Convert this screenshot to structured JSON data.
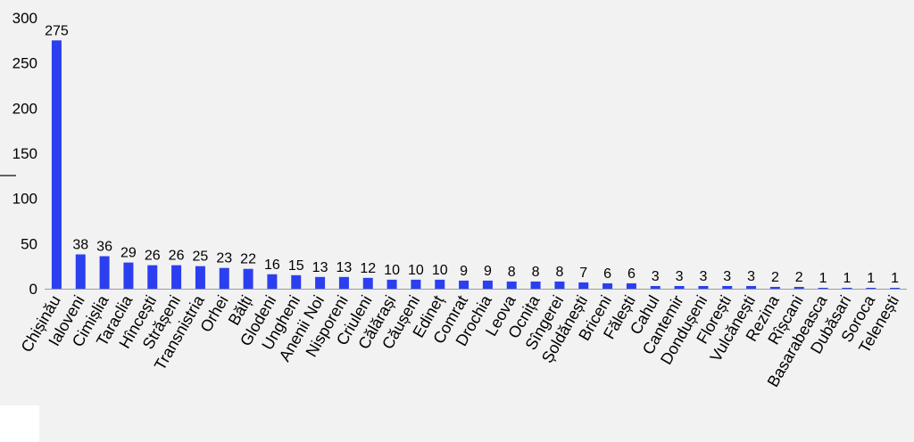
{
  "chart_data": {
    "type": "bar",
    "categories": [
      "Chișinău",
      "Ialoveni",
      "Cimișlia",
      "Taraclia",
      "Hîncești",
      "Strășeni",
      "Transnistria",
      "Orhei",
      "Bălți",
      "Glodeni",
      "Ungheni",
      "Anenii Noi",
      "Nisporeni",
      "Criuleni",
      "Călărași",
      "Căușeni",
      "Edineț",
      "Comrat",
      "Drochia",
      "Leova",
      "Ocnița",
      "Sîngerei",
      "Șoldănești",
      "Briceni",
      "Fălești",
      "Cahul",
      "Cantemir",
      "Dondușeni",
      "Florești",
      "Vulcănești",
      "Rezina",
      "Rîșcani",
      "Basarabeasca",
      "Dubăsari",
      "Soroca",
      "Telenești"
    ],
    "values": [
      275,
      38,
      36,
      29,
      26,
      26,
      25,
      23,
      22,
      16,
      15,
      13,
      13,
      12,
      10,
      10,
      10,
      9,
      9,
      8,
      8,
      8,
      7,
      6,
      6,
      3,
      3,
      3,
      3,
      3,
      2,
      2,
      1,
      1,
      1,
      1
    ],
    "yticks": [
      "0",
      "50",
      "100",
      "150",
      "200",
      "250",
      "300"
    ],
    "ylim": [
      0,
      300
    ],
    "bar_color": "#2b3ff0",
    "grid": false,
    "title": "",
    "xlabel": "",
    "ylabel": ""
  }
}
